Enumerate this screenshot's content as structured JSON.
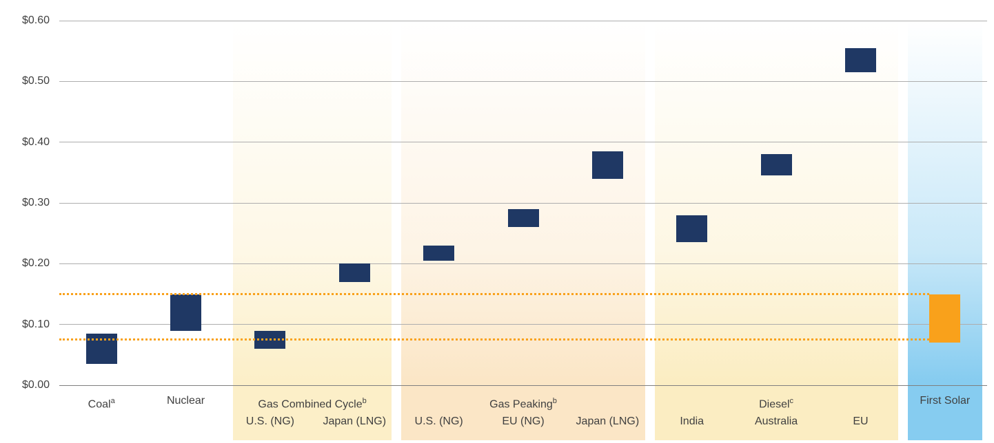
{
  "chart_data": {
    "type": "bar",
    "subtype": "floating-range-bar",
    "title": "",
    "xlabel": "",
    "ylabel": "",
    "ylim": [
      0,
      0.6
    ],
    "grid": "horizontal",
    "slot_count": 11,
    "yticks": [
      {
        "value": 0.0,
        "label": "$0.00"
      },
      {
        "value": 0.1,
        "label": "$0.10"
      },
      {
        "value": 0.2,
        "label": "$0.20"
      },
      {
        "value": 0.3,
        "label": "$0.30"
      },
      {
        "value": 0.4,
        "label": "$0.40"
      },
      {
        "value": 0.5,
        "label": "$0.50"
      },
      {
        "value": 0.6,
        "label": "$0.60"
      }
    ],
    "reference_lines": {
      "values": [
        0.15,
        0.075
      ],
      "color": "#F9A11B",
      "style": "dotted"
    },
    "groups": [
      {
        "label": "Coal",
        "sup": "a",
        "slots": [
          0,
          0
        ],
        "panel": null,
        "bars": [
          {
            "sublabel": null,
            "slot": 0,
            "low": 0.035,
            "high": 0.085,
            "color": "#1F3864"
          }
        ]
      },
      {
        "label": "Nuclear",
        "sup": "",
        "slots": [
          1,
          1
        ],
        "panel": null,
        "bars": [
          {
            "sublabel": null,
            "slot": 1,
            "low": 0.09,
            "high": 0.15,
            "color": "#1F3864"
          }
        ]
      },
      {
        "label": "Gas Combined Cycle",
        "sup": "b",
        "slots": [
          2,
          3
        ],
        "panel": "#FCEFC8",
        "bars": [
          {
            "sublabel": "U.S. (NG)",
            "slot": 2,
            "low": 0.06,
            "high": 0.09,
            "color": "#1F3864"
          },
          {
            "sublabel": "Japan (LNG)",
            "slot": 3,
            "low": 0.17,
            "high": 0.2,
            "color": "#1F3864"
          }
        ]
      },
      {
        "label": "Gas Peaking",
        "sup": "b",
        "slots": [
          4,
          6
        ],
        "panel": "#FBE6C6",
        "bars": [
          {
            "sublabel": "U.S. (NG)",
            "slot": 4,
            "low": 0.205,
            "high": 0.23,
            "color": "#1F3864"
          },
          {
            "sublabel": "EU (NG)",
            "slot": 5,
            "low": 0.26,
            "high": 0.29,
            "color": "#1F3864"
          },
          {
            "sublabel": "Japan (LNG)",
            "slot": 6,
            "low": 0.34,
            "high": 0.385,
            "color": "#1F3864"
          }
        ]
      },
      {
        "label": "Diesel",
        "sup": "c",
        "slots": [
          7,
          9
        ],
        "panel": "#FBEDC2",
        "bars": [
          {
            "sublabel": "India",
            "slot": 7,
            "low": 0.235,
            "high": 0.28,
            "color": "#1F3864"
          },
          {
            "sublabel": "Australia",
            "slot": 8,
            "low": 0.345,
            "high": 0.38,
            "color": "#1F3864"
          },
          {
            "sublabel": "EU",
            "slot": 9,
            "low": 0.515,
            "high": 0.555,
            "color": "#1F3864"
          }
        ]
      },
      {
        "label": "First Solar",
        "sup": "",
        "slots": [
          10,
          10
        ],
        "panel": "#86CCF0",
        "bars": [
          {
            "sublabel": null,
            "slot": 10,
            "low": 0.07,
            "high": 0.15,
            "color": "#F9A11B"
          }
        ]
      }
    ],
    "style": {
      "bar_navy": "#1F3864",
      "bar_orange": "#F9A11B",
      "gridline": "#ADADAD",
      "axis_line": "#7F7F7F",
      "label_text": "#404040"
    }
  }
}
